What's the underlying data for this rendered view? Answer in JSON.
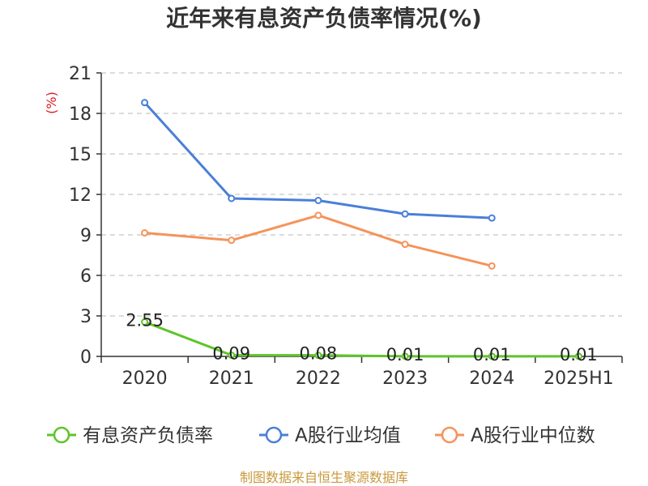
{
  "chart_data": {
    "type": "line",
    "title": "近年来有息资产负债率情况(%)",
    "ylabel": "(%)",
    "xlabel": "",
    "categories": [
      "2020",
      "2021",
      "2022",
      "2023",
      "2024",
      "2025H1"
    ],
    "ylim": [
      0,
      21
    ],
    "yticks": [
      0,
      3,
      6,
      9,
      12,
      15,
      18,
      21
    ],
    "grid": true,
    "legend_position": "bottom",
    "series": [
      {
        "name": "有息资产负债率",
        "color": "#5ec42a",
        "values": [
          2.55,
          0.09,
          0.08,
          0.01,
          0.01,
          0.01
        ],
        "labels": [
          "2.55",
          "0.09",
          "0.08",
          "0.01",
          "0.01",
          "0.01"
        ]
      },
      {
        "name": "A股行业均值",
        "color": "#4a7fd8",
        "values": [
          18.8,
          11.7,
          11.55,
          10.55,
          10.25,
          null
        ]
      },
      {
        "name": "A股行业中位数",
        "color": "#f5935a",
        "values": [
          9.15,
          8.6,
          10.45,
          8.3,
          6.7,
          null
        ]
      }
    ],
    "source": "制图数据来自恒生聚源数据库"
  }
}
